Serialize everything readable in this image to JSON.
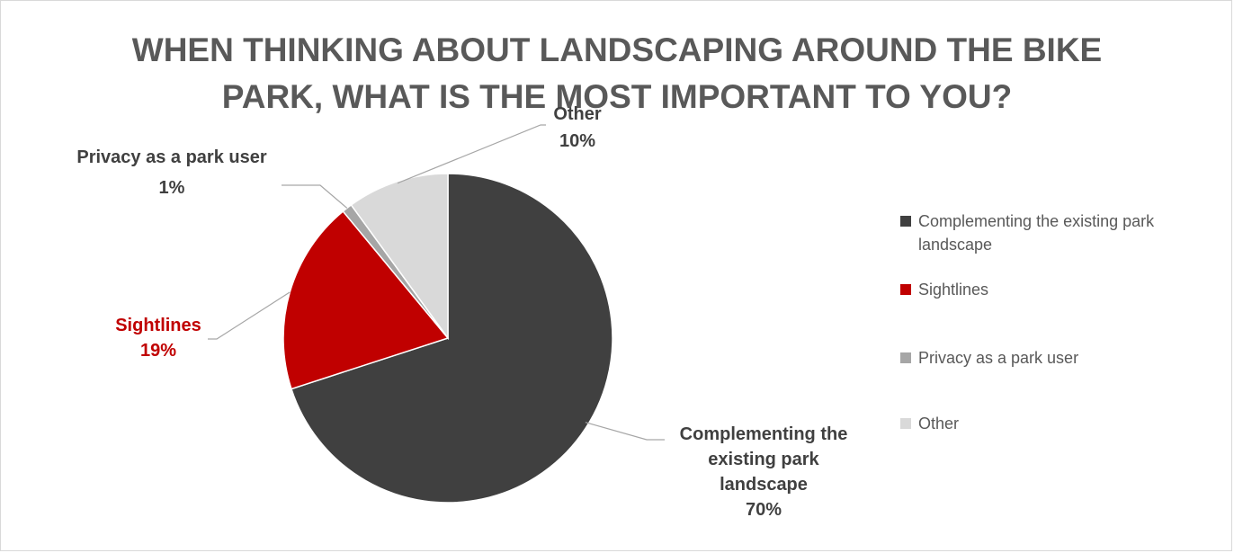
{
  "chart_data": {
    "type": "pie",
    "title": "WHEN THINKING ABOUT LANDSCAPING AROUND THE BIKE PARK, WHAT IS THE MOST IMPORTANT TO YOU?",
    "title_lines": [
      "WHEN THINKING ABOUT LANDSCAPING AROUND THE BIKE",
      "PARK, WHAT IS THE MOST IMPORTANT TO YOU?"
    ],
    "categories": [
      "Complementing the existing park landscape",
      "Sightlines",
      "Privacy as a park user",
      "Other"
    ],
    "values": [
      70,
      19,
      1,
      10
    ],
    "unit": "%",
    "colors": [
      "#404040",
      "#c00000",
      "#a6a6a6",
      "#d9d9d9"
    ],
    "data_labels": [
      {
        "lines": [
          "Complementing the",
          "existing park",
          "landscape",
          "70%"
        ],
        "color": "#404040"
      },
      {
        "lines": [
          "Sightlines",
          "19%"
        ],
        "color": "#c00000"
      },
      {
        "lines": [
          "Privacy as a park user",
          "1%"
        ],
        "color": "#404040"
      },
      {
        "lines": [
          "Other",
          "10%"
        ],
        "color": "#404040"
      }
    ],
    "legend": {
      "position": "right",
      "items": [
        {
          "lines": [
            "Complementing the existing park",
            "landscape"
          ]
        },
        {
          "lines": [
            "Sightlines"
          ]
        },
        {
          "lines": [
            "Privacy as a park user"
          ]
        },
        {
          "lines": [
            "Other"
          ]
        }
      ]
    }
  }
}
